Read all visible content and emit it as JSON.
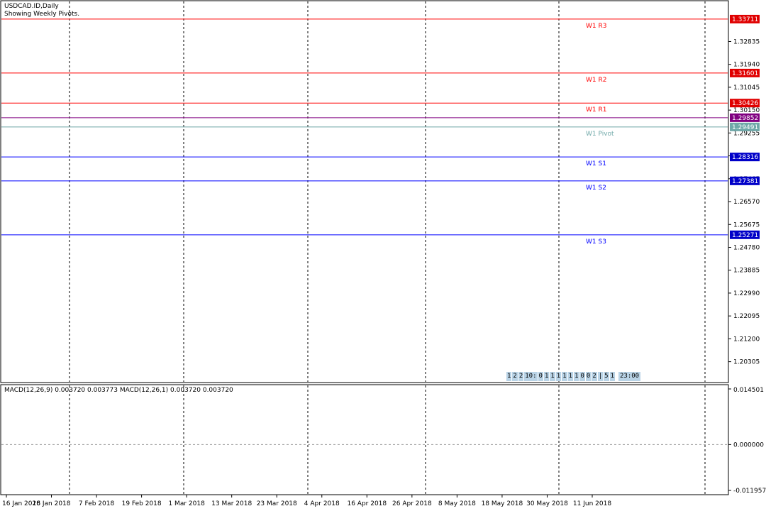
{
  "window": {
    "symbol_title": "USDCAD.ID,Daily",
    "subtitle": "Showing Weekly Pivots."
  },
  "colors": {
    "bull_candle": "#0000ff",
    "bear_candle": "#ff0000",
    "resistance_line": "#ff0000",
    "resistance_label_bg": "#e00000",
    "support_line": "#0000ff",
    "support_label_bg": "#0000c8",
    "pivot_line": "#6fa8a8",
    "ma_fast": "#8b1a1a",
    "ma_slow": "#e020e0",
    "macd_line": "#0000ff",
    "macd_signal": "#e00000",
    "histogram": "#808080",
    "current_price_bg": "#800080"
  },
  "chart_data": [
    {
      "type": "candlestick",
      "name": "USDCAD.ID,Daily",
      "y_range": [
        1.196,
        1.3432
      ],
      "y_ticks": [
        "1.32835",
        "1.31940",
        "1.31045",
        "1.30150",
        "1.29255",
        "1.28360",
        "1.27465",
        "1.26570",
        "1.25675",
        "1.24780",
        "1.23885",
        "1.22990",
        "1.22095",
        "1.21200",
        "1.20305"
      ],
      "x_ticks": [
        "16 Jan 2018",
        "26 Jan 2018",
        "7 Feb 2018",
        "19 Feb 2018",
        "1 Mar 2018",
        "13 Mar 2018",
        "23 Mar 2018",
        "4 Apr 2018",
        "16 Apr 2018",
        "26 Apr 2018",
        "8 May 2018",
        "18 May 2018",
        "30 May 2018",
        "11 Jun 2018"
      ],
      "pivot_levels": [
        {
          "label": "W1 R3",
          "value": 1.33711,
          "axis_label": "1.33711",
          "kind": "resistance"
        },
        {
          "label": "W1 R2",
          "value": 1.31601,
          "axis_label": "1.31601",
          "kind": "resistance"
        },
        {
          "label": "W1 R1",
          "value": 1.30426,
          "axis_label": "1.30426",
          "kind": "resistance"
        },
        {
          "label": "W1 Pivot",
          "value": 1.29491,
          "axis_label": "1.29491",
          "kind": "pivot"
        },
        {
          "label": "W1 S1",
          "value": 1.28316,
          "axis_label": "1.28316",
          "kind": "support"
        },
        {
          "label": "W1 S2",
          "value": 1.27381,
          "axis_label": "1.27381",
          "kind": "support"
        },
        {
          "label": "W1 S3",
          "value": 1.25271,
          "axis_label": "1.25271",
          "kind": "support"
        }
      ],
      "current_price": {
        "value": 1.29852,
        "axis_label": "1.29852"
      }
    },
    {
      "type": "line",
      "name": "MACD(12,26,9) 0.003720 0.003773 MACD(12,26,1) 0.003720 0.003720",
      "y_range": [
        -0.011957,
        0.014501
      ],
      "y_ticks": [
        "0.014501",
        "0.000000",
        "-0.011957"
      ]
    }
  ],
  "tick_box": {
    "digits": [
      "1",
      "2",
      "2",
      "10:",
      "0",
      "1",
      "1",
      "1",
      "1",
      "1",
      "1",
      "0",
      "0",
      "2",
      "|",
      "5",
      "1"
    ],
    "clock": "23:00"
  }
}
